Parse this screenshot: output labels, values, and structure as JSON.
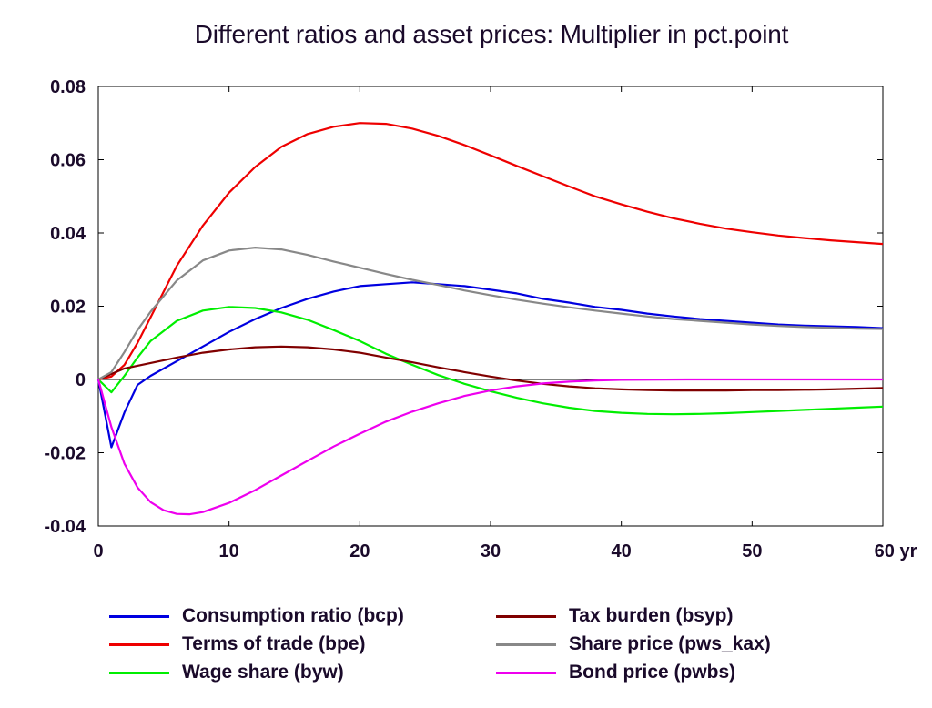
{
  "chart_data": {
    "type": "line",
    "title": "Different ratios and asset prices: Multiplier in pct.point",
    "xlabel": "",
    "ylabel": "",
    "xlim": [
      0,
      60
    ],
    "ylim": [
      -0.04,
      0.08
    ],
    "x_ticks": [
      {
        "value": 0,
        "label": "0"
      },
      {
        "value": 10,
        "label": "10"
      },
      {
        "value": 20,
        "label": "20"
      },
      {
        "value": 30,
        "label": "30"
      },
      {
        "value": 40,
        "label": "40"
      },
      {
        "value": 50,
        "label": "50"
      },
      {
        "value": 60,
        "label": "60 yr"
      }
    ],
    "y_ticks": [
      {
        "value": 0.08,
        "label": "0.08"
      },
      {
        "value": 0.06,
        "label": "0.06"
      },
      {
        "value": 0.04,
        "label": "0.04"
      },
      {
        "value": 0.02,
        "label": "0.02"
      },
      {
        "value": 0,
        "label": "0"
      },
      {
        "value": -0.02,
        "label": "-0.02"
      },
      {
        "value": -0.04,
        "label": "-0.04"
      }
    ],
    "grid": false,
    "legend_position": "bottom",
    "series": [
      {
        "name": "Consumption ratio (bcp)",
        "color": "#0000e0",
        "points": [
          [
            0,
            0
          ],
          [
            1,
            -0.0185
          ],
          [
            2,
            -0.009
          ],
          [
            3,
            -0.0015
          ],
          [
            4,
            0.001
          ],
          [
            6,
            0.005
          ],
          [
            8,
            0.009
          ],
          [
            10,
            0.013
          ],
          [
            12,
            0.0165
          ],
          [
            14,
            0.0195
          ],
          [
            16,
            0.022
          ],
          [
            18,
            0.024
          ],
          [
            20,
            0.0255
          ],
          [
            22,
            0.026
          ],
          [
            24,
            0.0265
          ],
          [
            26,
            0.026
          ],
          [
            28,
            0.0255
          ],
          [
            30,
            0.0245
          ],
          [
            32,
            0.0235
          ],
          [
            34,
            0.022
          ],
          [
            36,
            0.021
          ],
          [
            38,
            0.0198
          ],
          [
            40,
            0.019
          ],
          [
            42,
            0.018
          ],
          [
            44,
            0.0172
          ],
          [
            46,
            0.0165
          ],
          [
            48,
            0.016
          ],
          [
            50,
            0.0155
          ],
          [
            52,
            0.015
          ],
          [
            54,
            0.0147
          ],
          [
            56,
            0.0145
          ],
          [
            58,
            0.0143
          ],
          [
            60,
            0.014
          ]
        ]
      },
      {
        "name": "Terms of trade (bpe)",
        "color": "#ee0000",
        "points": [
          [
            0,
            0
          ],
          [
            1,
            0.0008
          ],
          [
            2,
            0.004
          ],
          [
            3,
            0.01
          ],
          [
            4,
            0.017
          ],
          [
            6,
            0.031
          ],
          [
            8,
            0.042
          ],
          [
            10,
            0.051
          ],
          [
            12,
            0.058
          ],
          [
            14,
            0.0635
          ],
          [
            16,
            0.067
          ],
          [
            18,
            0.069
          ],
          [
            20,
            0.07
          ],
          [
            22,
            0.0698
          ],
          [
            24,
            0.0685
          ],
          [
            26,
            0.0665
          ],
          [
            28,
            0.064
          ],
          [
            30,
            0.0612
          ],
          [
            32,
            0.0583
          ],
          [
            34,
            0.0555
          ],
          [
            36,
            0.0527
          ],
          [
            38,
            0.05
          ],
          [
            40,
            0.0478
          ],
          [
            42,
            0.0458
          ],
          [
            44,
            0.044
          ],
          [
            46,
            0.0425
          ],
          [
            48,
            0.0412
          ],
          [
            50,
            0.0402
          ],
          [
            52,
            0.0393
          ],
          [
            54,
            0.0386
          ],
          [
            56,
            0.038
          ],
          [
            58,
            0.0375
          ],
          [
            60,
            0.037
          ]
        ]
      },
      {
        "name": "Wage share (byw)",
        "color": "#00ee00",
        "points": [
          [
            0,
            0
          ],
          [
            1,
            -0.0035
          ],
          [
            2,
            0.001
          ],
          [
            3,
            0.006
          ],
          [
            4,
            0.0105
          ],
          [
            6,
            0.016
          ],
          [
            8,
            0.0188
          ],
          [
            10,
            0.0198
          ],
          [
            12,
            0.0195
          ],
          [
            14,
            0.0183
          ],
          [
            16,
            0.0163
          ],
          [
            18,
            0.0135
          ],
          [
            20,
            0.0105
          ],
          [
            22,
            0.007
          ],
          [
            24,
            0.004
          ],
          [
            26,
            0.0012
          ],
          [
            28,
            -0.0012
          ],
          [
            30,
            -0.0032
          ],
          [
            32,
            -0.005
          ],
          [
            34,
            -0.0065
          ],
          [
            36,
            -0.0077
          ],
          [
            38,
            -0.0086
          ],
          [
            40,
            -0.0091
          ],
          [
            42,
            -0.0094
          ],
          [
            44,
            -0.0095
          ],
          [
            46,
            -0.0094
          ],
          [
            48,
            -0.0092
          ],
          [
            50,
            -0.0089
          ],
          [
            52,
            -0.0086
          ],
          [
            54,
            -0.0083
          ],
          [
            56,
            -0.008
          ],
          [
            58,
            -0.0077
          ],
          [
            60,
            -0.0074
          ]
        ]
      },
      {
        "name": "Tax burden (bsyp)",
        "color": "#800000",
        "points": [
          [
            0,
            0
          ],
          [
            1,
            0.0015
          ],
          [
            2,
            0.003
          ],
          [
            4,
            0.0045
          ],
          [
            6,
            0.006
          ],
          [
            8,
            0.0073
          ],
          [
            10,
            0.0082
          ],
          [
            12,
            0.0088
          ],
          [
            14,
            0.009
          ],
          [
            16,
            0.0088
          ],
          [
            18,
            0.0082
          ],
          [
            20,
            0.0073
          ],
          [
            22,
            0.006
          ],
          [
            24,
            0.0047
          ],
          [
            26,
            0.0033
          ],
          [
            28,
            0.002
          ],
          [
            30,
            0.0008
          ],
          [
            32,
            -0.0003
          ],
          [
            34,
            -0.0012
          ],
          [
            36,
            -0.0019
          ],
          [
            38,
            -0.0024
          ],
          [
            40,
            -0.0027
          ],
          [
            42,
            -0.0029
          ],
          [
            44,
            -0.003
          ],
          [
            46,
            -0.003
          ],
          [
            48,
            -0.003
          ],
          [
            50,
            -0.0029
          ],
          [
            52,
            -0.0029
          ],
          [
            54,
            -0.0028
          ],
          [
            56,
            -0.0027
          ],
          [
            58,
            -0.0025
          ],
          [
            60,
            -0.0023
          ]
        ]
      },
      {
        "name": "Share price (pws_kax)",
        "color": "#888888",
        "points": [
          [
            0,
            0
          ],
          [
            1,
            0.002
          ],
          [
            2,
            0.0075
          ],
          [
            3,
            0.0135
          ],
          [
            4,
            0.0185
          ],
          [
            6,
            0.027
          ],
          [
            8,
            0.0325
          ],
          [
            10,
            0.0352
          ],
          [
            12,
            0.036
          ],
          [
            14,
            0.0355
          ],
          [
            16,
            0.034
          ],
          [
            18,
            0.0322
          ],
          [
            20,
            0.0305
          ],
          [
            22,
            0.0288
          ],
          [
            24,
            0.0272
          ],
          [
            26,
            0.0258
          ],
          [
            28,
            0.0243
          ],
          [
            30,
            0.023
          ],
          [
            32,
            0.0218
          ],
          [
            34,
            0.0207
          ],
          [
            36,
            0.0197
          ],
          [
            38,
            0.0188
          ],
          [
            40,
            0.018
          ],
          [
            42,
            0.0172
          ],
          [
            44,
            0.0165
          ],
          [
            46,
            0.016
          ],
          [
            48,
            0.0155
          ],
          [
            50,
            0.015
          ],
          [
            52,
            0.0146
          ],
          [
            54,
            0.0143
          ],
          [
            56,
            0.0141
          ],
          [
            58,
            0.0139
          ],
          [
            60,
            0.0138
          ]
        ]
      },
      {
        "name": "Bond price (pwbs)",
        "color": "#ee00ee",
        "points": [
          [
            0,
            0
          ],
          [
            1,
            -0.013
          ],
          [
            2,
            -0.023
          ],
          [
            3,
            -0.0295
          ],
          [
            4,
            -0.0335
          ],
          [
            5,
            -0.0357
          ],
          [
            6,
            -0.0367
          ],
          [
            7,
            -0.0368
          ],
          [
            8,
            -0.0362
          ],
          [
            10,
            -0.0337
          ],
          [
            12,
            -0.0302
          ],
          [
            14,
            -0.0262
          ],
          [
            16,
            -0.0222
          ],
          [
            18,
            -0.0183
          ],
          [
            20,
            -0.0148
          ],
          [
            22,
            -0.0115
          ],
          [
            24,
            -0.0088
          ],
          [
            26,
            -0.0065
          ],
          [
            28,
            -0.0045
          ],
          [
            30,
            -0.003
          ],
          [
            32,
            -0.0019
          ],
          [
            34,
            -0.0011
          ],
          [
            36,
            -0.0006
          ],
          [
            38,
            -0.0003
          ],
          [
            40,
            -0.0001
          ],
          [
            45,
            0
          ],
          [
            50,
            0
          ],
          [
            55,
            0
          ],
          [
            60,
            0
          ]
        ]
      }
    ]
  }
}
